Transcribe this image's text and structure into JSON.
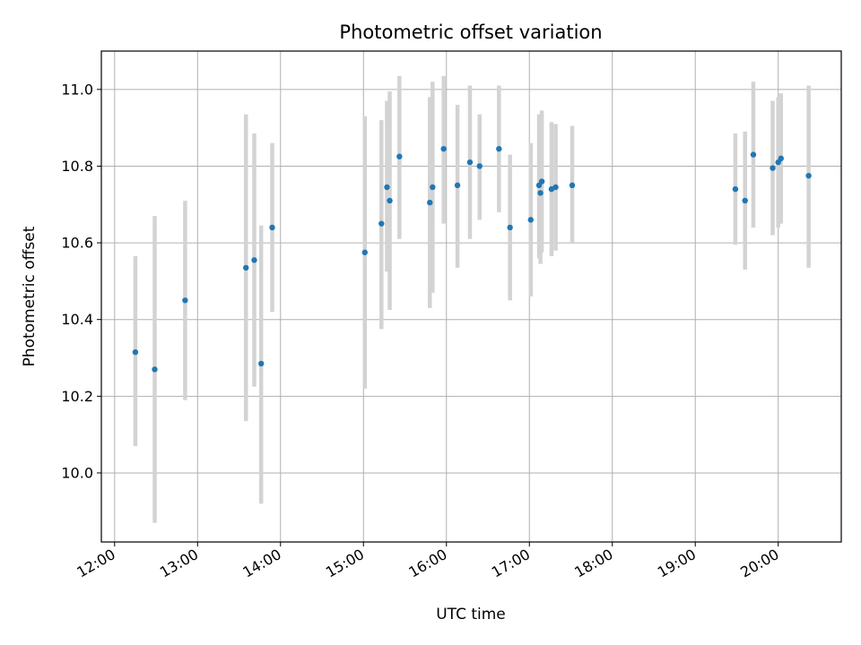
{
  "chart_data": {
    "type": "scatter",
    "title": "Photometric offset variation",
    "xlabel": "UTC time",
    "ylabel": "Photometric offset",
    "x_tick_labels": [
      "12:00",
      "13:00",
      "14:00",
      "15:00",
      "16:00",
      "17:00",
      "18:00",
      "19:00",
      "20:00"
    ],
    "y_tick_labels": [
      "10.0",
      "10.2",
      "10.4",
      "10.6",
      "10.8",
      "11.0"
    ],
    "x_ticks_hours": [
      12,
      13,
      14,
      15,
      16,
      17,
      18,
      19,
      20
    ],
    "y_ticks": [
      10.0,
      10.2,
      10.4,
      10.6,
      10.8,
      11.0
    ],
    "xlim_hours": [
      11.84,
      20.76
    ],
    "ylim": [
      9.82,
      11.1
    ],
    "grid": true,
    "colors": {
      "points": "#1f77b4",
      "errorbars": "#d3d3d3",
      "grid": "#b0b0b0"
    },
    "points": [
      {
        "t": "12:15",
        "y": 10.315,
        "lo": 10.07,
        "hi": 10.565
      },
      {
        "t": "12:29",
        "y": 10.27,
        "lo": 9.87,
        "hi": 10.67
      },
      {
        "t": "12:51",
        "y": 10.45,
        "lo": 10.19,
        "hi": 10.71
      },
      {
        "t": "13:35",
        "y": 10.535,
        "lo": 10.135,
        "hi": 10.935
      },
      {
        "t": "13:41",
        "y": 10.555,
        "lo": 10.225,
        "hi": 10.885
      },
      {
        "t": "13:46",
        "y": 10.285,
        "lo": 9.92,
        "hi": 10.645
      },
      {
        "t": "13:54",
        "y": 10.64,
        "lo": 10.42,
        "hi": 10.86
      },
      {
        "t": "15:01",
        "y": 10.575,
        "lo": 10.22,
        "hi": 10.93
      },
      {
        "t": "15:13",
        "y": 10.65,
        "lo": 10.375,
        "hi": 10.92
      },
      {
        "t": "15:17",
        "y": 10.745,
        "lo": 10.525,
        "hi": 10.97
      },
      {
        "t": "15:19",
        "y": 10.71,
        "lo": 10.425,
        "hi": 10.995
      },
      {
        "t": "15:26",
        "y": 10.825,
        "lo": 10.61,
        "hi": 11.035
      },
      {
        "t": "15:48",
        "y": 10.705,
        "lo": 10.43,
        "hi": 10.98
      },
      {
        "t": "15:50",
        "y": 10.745,
        "lo": 10.47,
        "hi": 11.02
      },
      {
        "t": "15:58",
        "y": 10.845,
        "lo": 10.65,
        "hi": 11.035
      },
      {
        "t": "16:08",
        "y": 10.75,
        "lo": 10.535,
        "hi": 10.96
      },
      {
        "t": "16:17",
        "y": 10.81,
        "lo": 10.61,
        "hi": 11.01
      },
      {
        "t": "16:24",
        "y": 10.8,
        "lo": 10.66,
        "hi": 10.935
      },
      {
        "t": "16:38",
        "y": 10.845,
        "lo": 10.68,
        "hi": 11.01
      },
      {
        "t": "16:46",
        "y": 10.64,
        "lo": 10.45,
        "hi": 10.83
      },
      {
        "t": "17:01",
        "y": 10.66,
        "lo": 10.46,
        "hi": 10.86
      },
      {
        "t": "17:07",
        "y": 10.75,
        "lo": 10.56,
        "hi": 10.935
      },
      {
        "t": "17:08",
        "y": 10.73,
        "lo": 10.545,
        "hi": 10.915
      },
      {
        "t": "17:09",
        "y": 10.76,
        "lo": 10.575,
        "hi": 10.945
      },
      {
        "t": "17:16",
        "y": 10.74,
        "lo": 10.565,
        "hi": 10.915
      },
      {
        "t": "17:19",
        "y": 10.745,
        "lo": 10.58,
        "hi": 10.91
      },
      {
        "t": "17:31",
        "y": 10.75,
        "lo": 10.6,
        "hi": 10.905
      },
      {
        "t": "19:29",
        "y": 10.74,
        "lo": 10.595,
        "hi": 10.885
      },
      {
        "t": "19:36",
        "y": 10.71,
        "lo": 10.53,
        "hi": 10.89
      },
      {
        "t": "19:42",
        "y": 10.83,
        "lo": 10.64,
        "hi": 11.02
      },
      {
        "t": "19:56",
        "y": 10.795,
        "lo": 10.62,
        "hi": 10.97
      },
      {
        "t": "20:00",
        "y": 10.81,
        "lo": 10.64,
        "hi": 10.98
      },
      {
        "t": "20:02",
        "y": 10.82,
        "lo": 10.65,
        "hi": 10.99
      },
      {
        "t": "20:22",
        "y": 10.775,
        "lo": 10.535,
        "hi": 11.01
      }
    ]
  }
}
